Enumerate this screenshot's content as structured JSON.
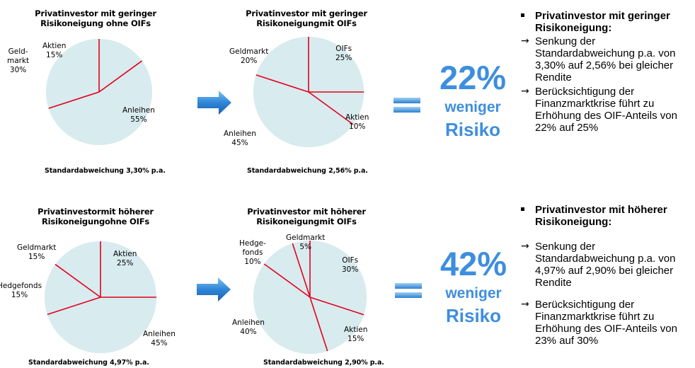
{
  "chart_data": [
    {
      "type": "pie",
      "title": "Privatinvestor mit geringer\nRisikoneigung ohne OIFs",
      "slices": [
        {
          "label": "Aktien\n15%",
          "value": 15
        },
        {
          "label": "Anleihen\n55%",
          "value": 55
        },
        {
          "label": "Geld-\nmarkt\n30%",
          "value": 30
        }
      ],
      "footer": "Standardabweichung  3,30% p.a."
    },
    {
      "type": "pie",
      "title": "Privatinvestor mit geringer\nRisikoneigungmit OIFs",
      "slices": [
        {
          "label": "OIFs\n25%",
          "value": 25
        },
        {
          "label": "Aktien\n10%",
          "value": 10
        },
        {
          "label": "Anleihen\n45%",
          "value": 45
        },
        {
          "label": "Geldmarkt\n20%",
          "value": 20
        }
      ],
      "footer": "Standardabweichung  2,56% p.a."
    },
    {
      "type": "pie",
      "title": "Privatinvestormit höherer\nRisikoneigungohne OIFs",
      "slices": [
        {
          "label": "Aktien\n25%",
          "value": 25
        },
        {
          "label": "Anleihen\n45%",
          "value": 45
        },
        {
          "label": "Hedgefonds\n15%",
          "value": 15
        },
        {
          "label": "Geldmarkt\n15%",
          "value": 15
        }
      ],
      "footer": "Standardabweichung  4,97% p.a."
    },
    {
      "type": "pie",
      "title": "Privatinvestor mit höherer\nRisikoneigungmit OIFs",
      "slices": [
        {
          "label": "OIFs\n30%",
          "value": 30
        },
        {
          "label": "Aktien\n15%",
          "value": 15
        },
        {
          "label": "Anleihen\n40%",
          "value": 40
        },
        {
          "label": "Hedge-\nfonds\n10%",
          "value": 10
        },
        {
          "label": "Geldmarkt\n5%",
          "value": 5
        }
      ],
      "footer": "Standardabweichung  2,90% p.a."
    }
  ],
  "results": [
    {
      "percent": "22%",
      "line1": "weniger",
      "line2": "Risiko"
    },
    {
      "percent": "42%",
      "line1": "weniger",
      "line2": "Risiko"
    }
  ],
  "bullets": [
    {
      "heading": "Privatinvestor mit geringer Risikoneigung:",
      "items": [
        "Senkung der Standardabweichung p.a. von 3,30% auf 2,56% bei gleicher Rendite",
        "Berücksichtigung der Finanzmarktkrise führt zu Erhöhung des OIF-Anteils von 22% auf 25%"
      ]
    },
    {
      "heading": "Privatinvestor mit höherer Risikoneigung:",
      "items": [
        "Senkung der Standardabweichung p.a. von 4,97% auf 2,90% bei gleicher Rendite",
        "Berücksichtigung der Finanzmarktkrise führt zu Erhöhung des OIF-Anteils von 23% auf 30%"
      ]
    }
  ],
  "colors": {
    "pie_fill": "#d8ebef",
    "pie_line": "#e3001b",
    "accent_blue": "#3e8ede"
  },
  "icons": {
    "arrow": "right-arrow-icon",
    "equals": "equals-icon",
    "bullet_arrow": "→"
  }
}
